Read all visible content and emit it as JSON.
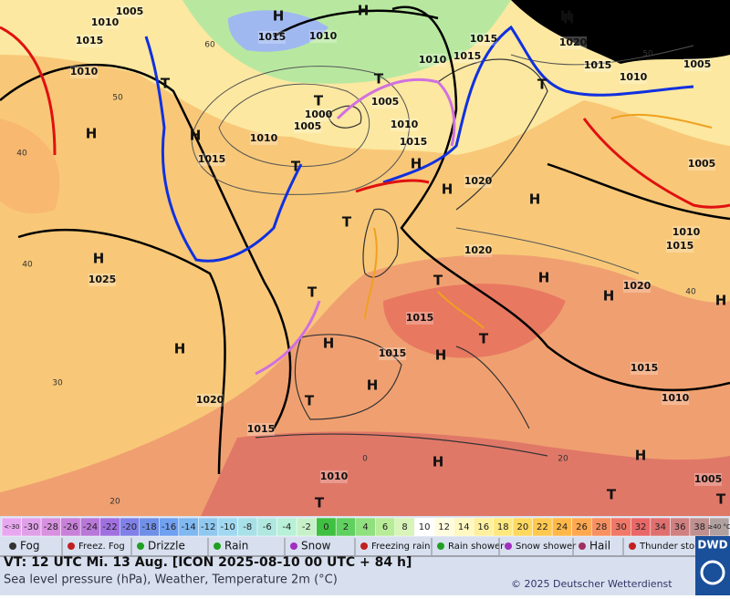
{
  "map": {
    "isobar_labels": [
      "1010",
      "1005",
      "1015",
      "1010",
      "1015",
      "1010",
      "1010",
      "1015",
      "1015",
      "1020",
      "1015",
      "1010",
      "1005",
      "1005",
      "1000",
      "1005",
      "1010",
      "1015",
      "1010",
      "1015",
      "1020",
      "1020",
      "1025",
      "1005",
      "1010",
      "1015",
      "1020",
      "1015",
      "1015",
      "1015",
      "1020",
      "1010",
      "1015",
      "1010",
      "1005"
    ],
    "highs": [
      "H",
      "H",
      "H",
      "H",
      "H",
      "H",
      "H",
      "H",
      "H",
      "H",
      "H",
      "H",
      "H",
      "H",
      "H",
      "H",
      "H",
      "H",
      "H"
    ],
    "lows": [
      "T",
      "T",
      "T",
      "T",
      "T",
      "T",
      "T",
      "T",
      "T",
      "T",
      "T",
      "T",
      "T"
    ],
    "grid_labels": [
      "60",
      "50",
      "40",
      "40",
      "30",
      "20",
      "0",
      "20",
      "40",
      "50"
    ]
  },
  "legend": {
    "temperature_scale": [
      "<-30",
      -30,
      -28,
      -26,
      -24,
      -22,
      -20,
      -18,
      -16,
      -14,
      -12,
      -10,
      -8,
      -6,
      -4,
      -2,
      0,
      2,
      4,
      6,
      8,
      10,
      12,
      14,
      16,
      18,
      20,
      22,
      24,
      26,
      28,
      30,
      32,
      34,
      36,
      38,
      "≥40 °C"
    ],
    "colors": [
      "#e8a8f0",
      "#e0a0e8",
      "#d890e0",
      "#c880d8",
      "#b878d8",
      "#a070e0",
      "#8080e8",
      "#7090e8",
      "#70a0f0",
      "#80b8f0",
      "#90c8f0",
      "#a0d8f0",
      "#a8e0e8",
      "#b0e8e0",
      "#b8f0d8",
      "#c8f0c8",
      "#40c040",
      "#60d060",
      "#90e080",
      "#b8ec98",
      "#d8f4b8",
      "#ffffff",
      "#fffce0",
      "#fff8c0",
      "#fff0a0",
      "#ffe880",
      "#ffd860",
      "#ffc850",
      "#ffb848",
      "#ffa850",
      "#f89060",
      "#f07868",
      "#e86868",
      "#e07070",
      "#d08080",
      "#c09090",
      "#b0a0a0"
    ],
    "weather": [
      "Fog",
      "Freez. Fog",
      "Drizzle",
      "Rain",
      "Snow",
      "Freezing rain",
      "Rain shower",
      "Snow shower",
      "Hail",
      "Thunder storm"
    ]
  },
  "footer": {
    "valid_time": "VT: 12 UTC Mi.  13 Aug. [ICON 2025-08-10  00 UTC + 84 h]",
    "description": "Sea level pressure (hPa), Weather, Temperature 2m (°C)",
    "copyright": "© 2025 Deutscher Wetterdienst",
    "logo": "DWD"
  }
}
